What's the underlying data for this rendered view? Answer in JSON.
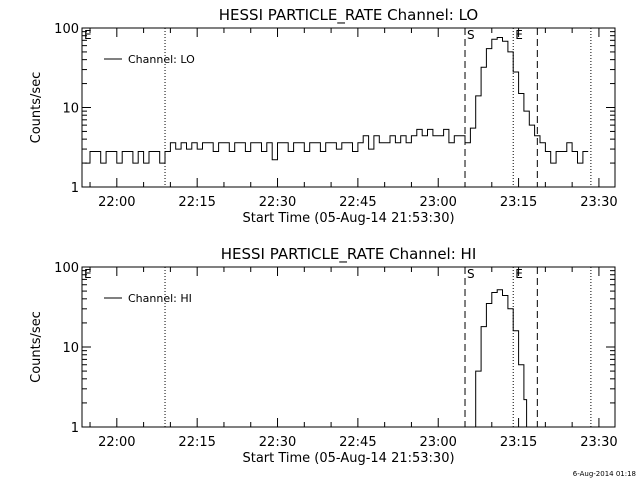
{
  "chart_data": [
    {
      "type": "line",
      "title": "HESSI PARTICLE_RATE Channel: LO",
      "xlabel": "Start Time (05-Aug-14 21:53:30)",
      "ylabel": "Counts/sec",
      "yscale": "log",
      "ylim": [
        1,
        100
      ],
      "xlim": [
        "21:53:30",
        "23:33:00"
      ],
      "ytick_labels": [
        "1",
        "10",
        "100"
      ],
      "xtick_labels": [
        "22:00",
        "22:15",
        "22:30",
        "22:45",
        "23:00",
        "23:15",
        "23:30"
      ],
      "grid": false,
      "legend_position": "top-left",
      "series": [
        {
          "name": "Channel: LO",
          "x": [
            "21:54",
            "21:55",
            "21:56",
            "21:57",
            "21:58",
            "21:59",
            "22:00",
            "22:01",
            "22:02",
            "22:03",
            "22:04",
            "22:05",
            "22:06",
            "22:07",
            "22:08",
            "22:09",
            "22:10",
            "22:11",
            "22:12",
            "22:13",
            "22:14",
            "22:15",
            "22:16",
            "22:17",
            "22:18",
            "22:19",
            "22:20",
            "22:21",
            "22:22",
            "22:23",
            "22:24",
            "22:25",
            "22:26",
            "22:27",
            "22:28",
            "22:29",
            "22:30",
            "22:31",
            "22:32",
            "22:33",
            "22:34",
            "22:35",
            "22:36",
            "22:37",
            "22:38",
            "22:39",
            "22:40",
            "22:41",
            "22:42",
            "22:43",
            "22:44",
            "22:45",
            "22:46",
            "22:47",
            "22:48",
            "22:49",
            "22:50",
            "22:51",
            "22:52",
            "22:53",
            "22:54",
            "22:55",
            "22:56",
            "22:57",
            "22:58",
            "22:59",
            "23:00",
            "23:01",
            "23:02",
            "23:03",
            "23:04",
            "23:05",
            "23:06",
            "23:07",
            "23:08",
            "23:09",
            "23:10",
            "23:11",
            "23:12",
            "23:13",
            "23:14",
            "23:15",
            "23:16",
            "23:17",
            "23:18",
            "23:19",
            "23:20",
            "23:21",
            "23:22",
            "23:23",
            "23:24",
            "23:25",
            "23:26",
            "23:27",
            "23:28"
          ],
          "values": [
            2.0,
            2.8,
            2.8,
            2.0,
            2.8,
            2.8,
            2.0,
            2.8,
            2.8,
            2.0,
            2.8,
            2.0,
            2.8,
            2.8,
            2.0,
            2.8,
            3.6,
            3.0,
            3.6,
            3.0,
            3.6,
            3.0,
            3.6,
            3.6,
            2.8,
            3.6,
            3.6,
            2.8,
            3.6,
            3.6,
            2.8,
            3.6,
            3.6,
            2.8,
            3.6,
            2.2,
            3.6,
            3.6,
            2.8,
            3.6,
            3.6,
            2.8,
            3.6,
            3.6,
            2.8,
            3.6,
            3.6,
            3.0,
            3.6,
            3.6,
            2.8,
            3.6,
            4.4,
            3.0,
            4.4,
            3.6,
            3.6,
            4.4,
            3.6,
            4.4,
            3.6,
            4.4,
            5.3,
            4.4,
            5.3,
            4.4,
            4.4,
            5.3,
            3.6,
            4.4,
            4.4,
            3.6,
            5.5,
            14,
            32,
            55,
            72,
            76,
            68,
            50,
            28,
            15,
            9,
            6,
            4.4,
            3.6,
            2.8,
            2.0,
            2.8,
            2.8,
            3.6,
            2.8,
            2.0,
            2.8,
            2.8
          ]
        }
      ],
      "markers": [
        {
          "label": "E",
          "time": "21:53:30",
          "style": "dotted"
        },
        {
          "time": "22:09:00",
          "style": "dotted"
        },
        {
          "label": "S",
          "time": "23:05:00",
          "style": "dashed"
        },
        {
          "label": "E",
          "time": "23:14:00",
          "style": "dotted"
        },
        {
          "time": "23:18:30",
          "style": "dashed"
        },
        {
          "time": "23:28:30",
          "style": "dotted"
        }
      ]
    },
    {
      "type": "line",
      "title": "HESSI PARTICLE_RATE Channel: HI",
      "xlabel": "Start Time (05-Aug-14 21:53:30)",
      "ylabel": "Counts/sec",
      "yscale": "log",
      "ylim": [
        1,
        100
      ],
      "xlim": [
        "21:53:30",
        "23:33:00"
      ],
      "ytick_labels": [
        "1",
        "10",
        "100"
      ],
      "xtick_labels": [
        "22:00",
        "22:15",
        "22:30",
        "22:45",
        "23:00",
        "23:15",
        "23:30"
      ],
      "grid": false,
      "legend_position": "top-left",
      "series": [
        {
          "name": "Channel: HI",
          "x": [
            "23:06:15",
            "23:07",
            "23:08",
            "23:09",
            "23:10",
            "23:11",
            "23:12",
            "23:13",
            "23:14",
            "23:15",
            "23:16",
            "23:16:30"
          ],
          "values": [
            1.0,
            5.0,
            18,
            35,
            48,
            52,
            44,
            30,
            16,
            6,
            2.2,
            1.0
          ]
        }
      ],
      "markers": [
        {
          "label": "E",
          "time": "21:53:30",
          "style": "dotted"
        },
        {
          "time": "22:09:00",
          "style": "dotted"
        },
        {
          "label": "S",
          "time": "23:05:00",
          "style": "dashed"
        },
        {
          "label": "E",
          "time": "23:14:00",
          "style": "dotted"
        },
        {
          "time": "23:18:30",
          "style": "dashed"
        },
        {
          "time": "23:28:30",
          "style": "dotted"
        }
      ]
    }
  ],
  "footer": {
    "timestamp": "6-Aug-2014 01:18"
  }
}
